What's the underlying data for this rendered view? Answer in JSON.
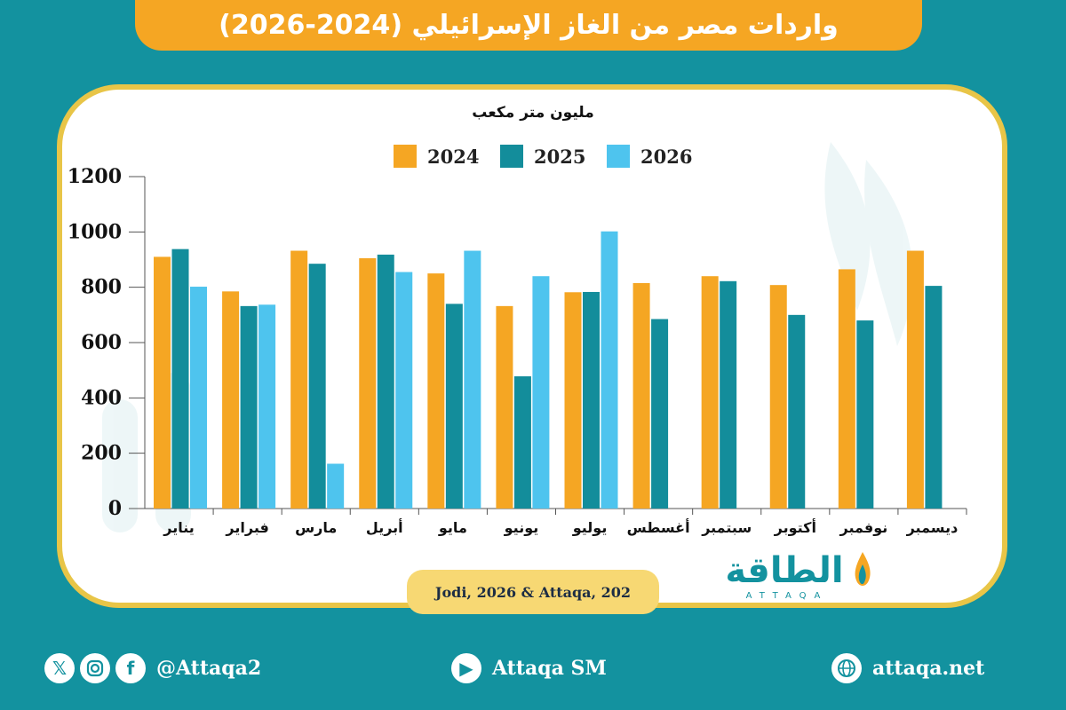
{
  "title": "واردات مصر من الغاز الإسرائيلي (2024-2026)",
  "unit_label": "مليون متر مكعب",
  "source": "Jodi, 2026 & Attaqa, 202",
  "logo": {
    "arabic": "الطاقة",
    "english": "ATTAQA"
  },
  "footer": {
    "social_handle": "@Attaqa2",
    "youtube": "Attaqa SM",
    "website": "attaqa.net"
  },
  "colors": {
    "background": "#13929f",
    "accent": "#f5a623",
    "card_border": "#e8c547"
  },
  "chart_data": {
    "type": "bar",
    "title": "واردات مصر من الغاز الإسرائيلي (2024-2026)",
    "ylabel": "مليون متر مكعب",
    "ylim": [
      0,
      1200
    ],
    "yticks": [
      0,
      200,
      400,
      600,
      800,
      1000,
      1200
    ],
    "grid": false,
    "legend_position": "top-center",
    "categories": [
      "يناير",
      "فبراير",
      "مارس",
      "أبريل",
      "مايو",
      "يونيو",
      "يوليو",
      "أغسطس",
      "سبتمبر",
      "أكتوبر",
      "نوفمبر",
      "ديسمبر"
    ],
    "series": [
      {
        "name": "2024",
        "color": "#f5a623",
        "values": [
          910,
          785,
          932,
          905,
          850,
          732,
          782,
          815,
          840,
          808,
          865,
          932
        ]
      },
      {
        "name": "2025",
        "color": "#138d9b",
        "values": [
          938,
          732,
          885,
          918,
          740,
          478,
          783,
          685,
          822,
          700,
          680,
          805
        ]
      },
      {
        "name": "2026",
        "color": "#4ec4ee",
        "values": [
          802,
          737,
          162,
          855,
          932,
          840,
          1002,
          null,
          null,
          null,
          null,
          null
        ]
      }
    ]
  }
}
